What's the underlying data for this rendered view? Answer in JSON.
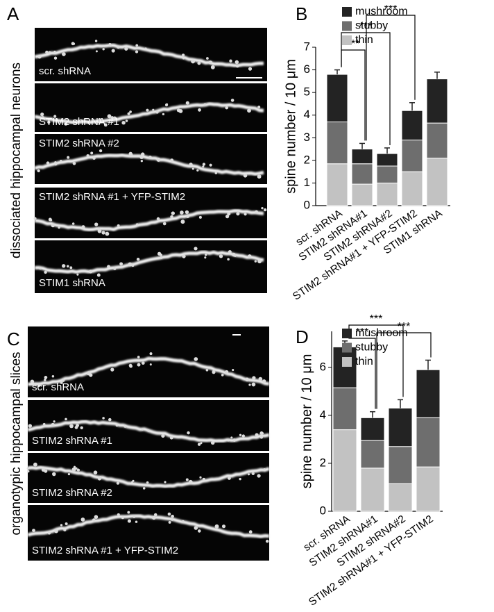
{
  "figure": {
    "panel_labels": [
      "A",
      "B",
      "C",
      "D"
    ],
    "image_panels": [
      {
        "side_label": "dissociated hippocampal neurons",
        "captions": [
          "scr. shRNA",
          "STIM2 shRNA #1",
          "STIM2 shRNA #2",
          "STIM2 shRNA #1 + YFP-STIM2",
          "STIM1 shRNA"
        ]
      },
      {
        "side_label": "organotypic hippocampal slices",
        "captions": [
          "scr. shRNA",
          "STIM2 shRNA #1",
          "STIM2 shRNA #2",
          "STIM2 shRNA #1 + YFP-STIM2"
        ]
      }
    ]
  },
  "chart_data": [
    {
      "type": "stacked_bar",
      "y_label": "spine number / 10 μm",
      "categories": [
        "scr. shRNA",
        "STIM2 shRNA#1",
        "STIM2 shRNA#2",
        "STIM2 shRNA#1 + YFP-STIM2",
        "STIM1 shRNA"
      ],
      "series": [
        {
          "name": "thin",
          "color": "#c2c2c2",
          "values": [
            1.85,
            0.95,
            1.0,
            1.5,
            2.1
          ]
        },
        {
          "name": "stubby",
          "color": "#6e6e6e",
          "values": [
            1.85,
            0.9,
            0.75,
            1.4,
            1.55
          ]
        },
        {
          "name": "mushroom",
          "color": "#232323",
          "values": [
            2.1,
            0.65,
            0.55,
            1.3,
            1.95
          ],
          "errors": [
            0.2,
            0.25,
            0.25,
            0.35,
            0.3
          ]
        }
      ],
      "ylim": [
        0,
        7
      ],
      "yticks": [
        0,
        1,
        2,
        3,
        4,
        5,
        6,
        7
      ],
      "annotations": [
        "***",
        "***",
        "***"
      ]
    },
    {
      "type": "stacked_bar",
      "y_label": "spine number / 10 μm",
      "categories": [
        "scr. shRNA",
        "STIM2 shRNA#1",
        "STIM2 shRNA#2",
        "STIM2 shRNA#1 + YFP-STIM2"
      ],
      "series": [
        {
          "name": "thin",
          "color": "#c2c2c2",
          "values": [
            3.4,
            1.8,
            1.15,
            1.85
          ]
        },
        {
          "name": "stubby",
          "color": "#6e6e6e",
          "values": [
            1.75,
            1.15,
            1.55,
            2.05
          ]
        },
        {
          "name": "mushroom",
          "color": "#232323",
          "values": [
            1.7,
            0.95,
            1.6,
            2.0
          ],
          "errors": [
            0.25,
            0.25,
            0.35,
            0.4
          ]
        }
      ],
      "ylim": [
        0,
        7.5
      ],
      "yticks": [
        0,
        2,
        4,
        6
      ],
      "annotations": [
        "***",
        "***",
        "***"
      ]
    }
  ]
}
